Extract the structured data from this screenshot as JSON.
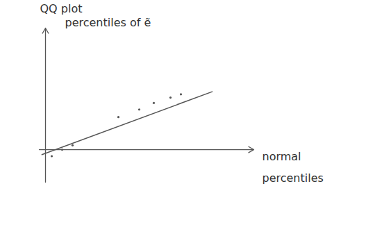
{
  "chart_data": {
    "type": "scatter",
    "title": "QQ plot",
    "x_label": "normal percentiles",
    "y_label": "percentiles of ẽ",
    "x": [
      0.3,
      0.8,
      1.3,
      3.5,
      4.5,
      5.2,
      6.0,
      6.5
    ],
    "values": [
      -0.3,
      0.0,
      0.2,
      1.5,
      1.85,
      2.15,
      2.4,
      2.55
    ],
    "color": "#555555",
    "marker": "dot",
    "reference_line": {
      "x": [
        -0.17,
        8
      ],
      "y": [
        -0.23,
        2.67
      ]
    },
    "xlim": [
      -0.3,
      10
    ],
    "ylim": [
      -1.5,
      5.6
    ],
    "xticks": [],
    "yticks": [],
    "tick_labels": false,
    "grid": false
  }
}
